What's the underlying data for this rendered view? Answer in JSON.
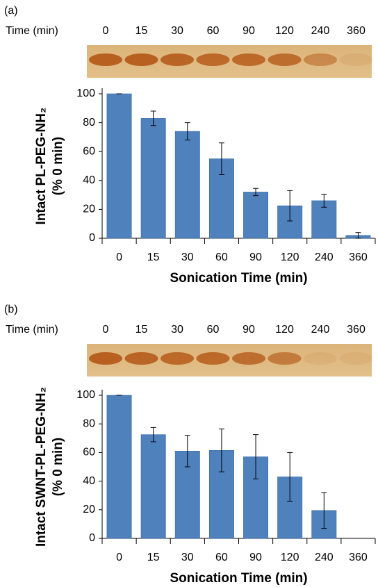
{
  "chart_data": [
    {
      "type": "bar",
      "panel": "(a)",
      "lane_title": "Time (min)",
      "categories": [
        "0",
        "15",
        "30",
        "60",
        "90",
        "120",
        "240",
        "360"
      ],
      "values": [
        100,
        83,
        74,
        55,
        32,
        22.5,
        26,
        2
      ],
      "errors": [
        0,
        5,
        6,
        11,
        2.5,
        10.5,
        4.5,
        2
      ],
      "color": "#4f81bd",
      "y_label": [
        "Intact PL-PEG-NH₂",
        "(% 0 min)"
      ],
      "x_label": "Sonication Time (min)",
      "ylim": [
        0,
        100
      ],
      "yticks": [
        0,
        20,
        40,
        60,
        80,
        100
      ]
    },
    {
      "type": "bar",
      "panel": "(b)",
      "lane_title": "Time (min)",
      "categories": [
        "0",
        "15",
        "30",
        "60",
        "90",
        "120",
        "240",
        "360"
      ],
      "values": [
        100,
        72.5,
        61,
        61.5,
        57,
        43,
        19.5,
        0
      ],
      "errors": [
        0,
        5,
        11,
        15,
        15.5,
        17,
        12.5,
        0
      ],
      "color": "#4f81bd",
      "y_label": [
        "Intact SWNT-PL-PEG-NH₂",
        "(% 0 min)"
      ],
      "x_label": "Sonication Time (min)",
      "ylim": [
        0,
        100
      ],
      "yticks": [
        0,
        20,
        40,
        60,
        80,
        100
      ]
    }
  ]
}
